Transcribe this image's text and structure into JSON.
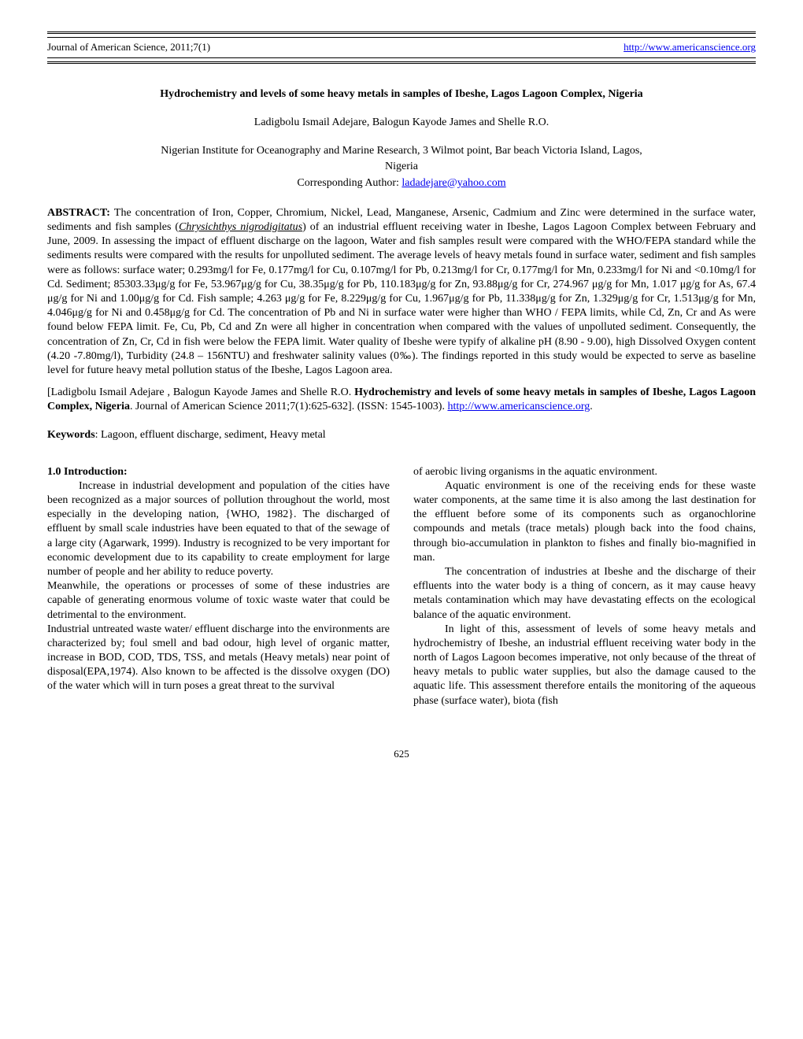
{
  "header": {
    "journal": "Journal of American Science, 2011;7(1)",
    "url": "http://www.americanscience.org"
  },
  "title": "Hydrochemistry and levels of some heavy metals in samples of Ibeshe, Lagos Lagoon Complex, Nigeria",
  "authors": "Ladigbolu Ismail Adejare, Balogun Kayode James and Shelle R.O.",
  "affiliation_line1": "Nigerian Institute for Oceanography and Marine Research, 3 Wilmot point, Bar beach Victoria Island, Lagos,",
  "affiliation_line2": "Nigeria",
  "corresponding_label": "Corresponding Author: ",
  "corresponding_email": "ladadejare@yahoo.com",
  "abstract": {
    "label": "ABSTRACT: ",
    "text_part1": "The concentration of Iron, Copper, Chromium, Nickel, Lead, Manganese, Arsenic, Cadmium and Zinc were determined in the surface water, sediments and fish samples (",
    "species": "Chrysichthys nigrodigitatus",
    "text_part2": ") of an industrial effluent receiving water in Ibeshe, Lagos Lagoon Complex between February and June, 2009. In assessing the impact of effluent discharge on the lagoon, Water and fish samples result were compared with the WHO/FEPA standard while the sediments results were compared with the results for unpolluted sediment. The average levels of heavy metals found in surface water, sediment and fish samples were as follows: surface water; 0.293mg/l for Fe, 0.177mg/l for Cu, 0.107mg/l for Pb, 0.213mg/l for Cr, 0.177mg/l for Mn, 0.233mg/l for Ni and <0.10mg/l for Cd. Sediment; 85303.33μg/g for Fe, 53.967μg/g for Cu, 38.35μg/g for Pb, 110.183μg/g for Zn, 93.88μg/g for Cr, 274.967 μg/g for Mn, 1.017 μg/g for As, 67.4 μg/g for Ni and 1.00μg/g for Cd. Fish sample; 4.263 μg/g for Fe, 8.229μg/g for Cu, 1.967μg/g for Pb, 11.338μg/g for Zn, 1.329μg/g for Cr, 1.513μg/g for Mn, 4.046μg/g for Ni and 0.458μg/g for Cd.  The concentration of Pb and Ni in surface water were higher than WHO / FEPA limits, while Cd, Zn, Cr and As were found below FEPA limit. Fe, Cu, Pb, Cd and Zn were all higher in concentration when compared with the values of unpolluted sediment. Consequently, the concentration of Zn, Cr, Cd in fish were below the FEPA limit. Water quality of Ibeshe were typify of alkaline pH (8.90 - 9.00), high Dissolved Oxygen content (4.20 -7.80mg/l), Turbidity (24.8 – 156NTU) and freshwater salinity values (0‰). The findings reported in this study would be expected to serve as baseline level for future heavy metal pollution status of the Ibeshe, Lagos Lagoon area."
  },
  "citation": {
    "text1": "[Ladigbolu Ismail Adejare , Balogun Kayode James and Shelle R.O. ",
    "bold": "Hydrochemistry and levels of some heavy metals in samples of Ibeshe, Lagos Lagoon Complex, Nigeria",
    "text2": ". Journal of American Science 2011;7(1):625-632]. (ISSN: 1545-1003). ",
    "link": "http://www.americanscience.org",
    "text3": "."
  },
  "keywords": {
    "label": "Keywords",
    "text": ": Lagoon, effluent discharge, sediment, Heavy metal"
  },
  "intro": {
    "title": "1.0 Introduction:",
    "p1": "Increase in industrial development and population of the cities have been recognized as a major sources of pollution throughout the world, most especially in the developing nation, {WHO, 1982}. The discharged of effluent by small scale industries have been equated to that of the sewage of a large city (Agarwark, 1999). Industry is recognized to be very important for economic development due to its capability to create employment for large number of people and her ability to reduce poverty.",
    "p2": "Meanwhile, the operations or processes of some of these industries are capable of generating enormous volume of toxic waste water that could be detrimental to the environment.",
    "p3": "Industrial untreated waste water/ effluent discharge into the environments are characterized by; foul smell and bad odour, high level of organic matter, increase in BOD, COD, TDS, TSS, and metals (Heavy metals) near point of disposal(EPA,1974). Also known to be affected is the dissolve oxygen (DO) of the water which will in turn poses a great threat to the survival",
    "col2_p1": "of aerobic living organisms in the aquatic environment.",
    "col2_p2": "Aquatic environment is one of the receiving ends for these waste water components, at the same time it is also among the last destination for the effluent before some of its components such as organochlorine compounds and metals (trace metals) plough back into the food chains, through bio-accumulation in plankton to fishes and finally bio-magnified in man.",
    "col2_p3": "The concentration of industries at Ibeshe and the discharge of their effluents into the water body is a thing of concern, as it may cause heavy metals contamination which may have devastating effects on the ecological balance of the aquatic environment.",
    "col2_p4": "In light of this, assessment of levels of some heavy metals and hydrochemistry of Ibeshe, an industrial effluent receiving water body in the north of Lagos Lagoon becomes imperative, not only because of the threat of heavy metals to public water supplies, but also the damage caused to the aquatic life. This assessment therefore entails the monitoring of the aqueous phase (surface water), biota (fish"
  },
  "page_number": "625"
}
